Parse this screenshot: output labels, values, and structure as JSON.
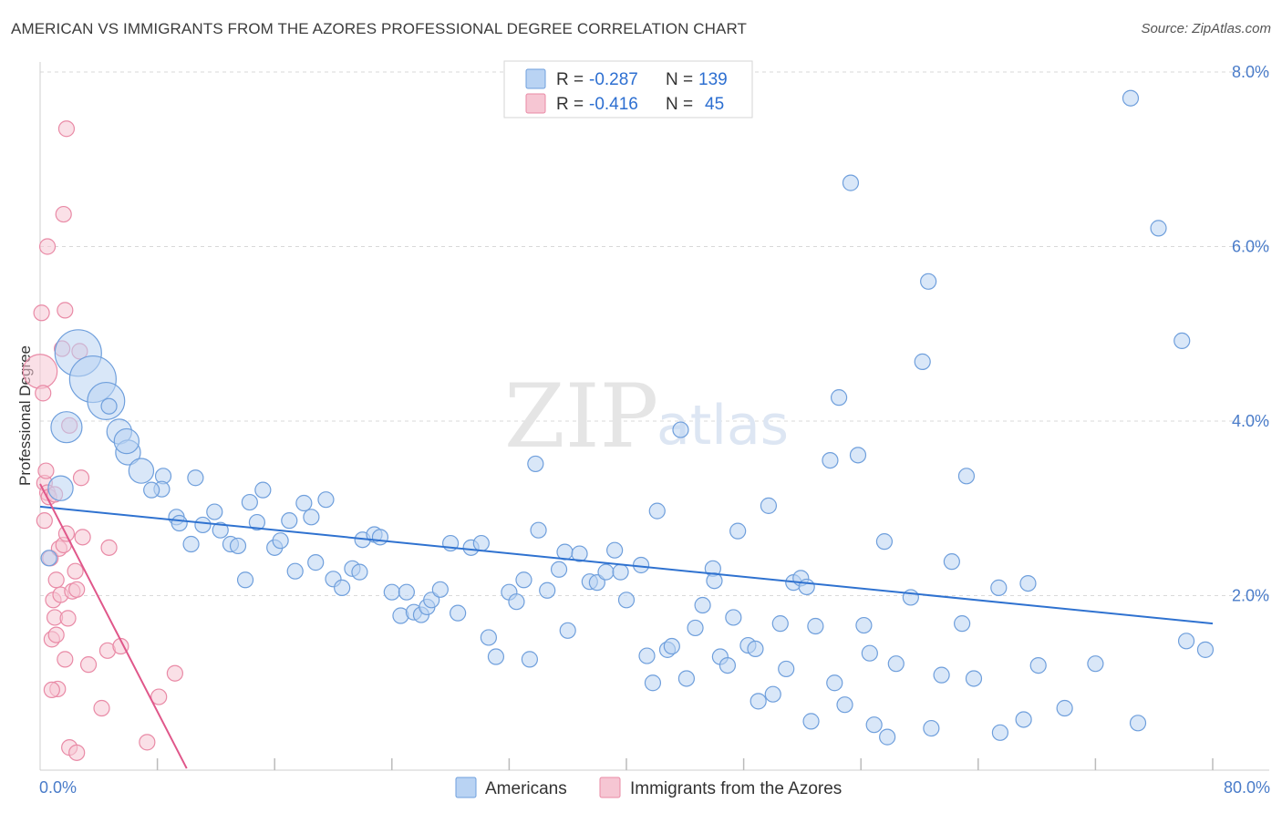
{
  "header": {
    "title": "AMERICAN VS IMMIGRANTS FROM THE AZORES PROFESSIONAL DEGREE CORRELATION CHART",
    "source": "Source: ZipAtlas.com"
  },
  "watermark": {
    "zip": "ZIP",
    "atlas": "atlas"
  },
  "colors": {
    "blue_fill": "#b9d3f3",
    "blue_stroke": "#6f9fdc",
    "blue_line": "#2f72d0",
    "pink_fill": "#f6c6d3",
    "pink_stroke": "#e98aa6",
    "pink_line": "#e0578a",
    "grid": "#d9d9d9",
    "axis_text": "#4a7cc9"
  },
  "legend_top": {
    "row1": {
      "r_label": "R =",
      "r_value": "-0.287",
      "n_label": "N =",
      "n_value": "139"
    },
    "row2": {
      "r_label": "R =",
      "r_value": "-0.416",
      "n_label": "N =",
      "n_value": "45"
    }
  },
  "legend_bottom": {
    "americans": "Americans",
    "azores": "Immigrants from the Azores"
  },
  "chart_data": {
    "type": "scatter",
    "title": "AMERICAN VS IMMIGRANTS FROM THE AZORES PROFESSIONAL DEGREE CORRELATION CHART",
    "xlabel": "",
    "ylabel": "Professional Degree",
    "xlim": [
      0,
      80
    ],
    "ylim": [
      0,
      8
    ],
    "x_tick_labels": [
      "0.0%",
      "80.0%"
    ],
    "y_ticks": [
      2,
      4,
      6,
      8
    ],
    "y_tick_labels": [
      "2.0%",
      "4.0%",
      "6.0%",
      "8.0%"
    ],
    "grid": "horizontal dashed",
    "legend_position": "top-center and bottom",
    "series": [
      {
        "name": "Americans",
        "r": -0.287,
        "n": 139,
        "trend": [
          [
            0,
            3.02
          ],
          [
            80,
            1.68
          ]
        ],
        "points": [
          [
            2.6,
            4.78,
            3
          ],
          [
            3.6,
            4.48,
            3
          ],
          [
            4.5,
            4.23,
            2.4
          ],
          [
            1.8,
            3.93,
            2
          ],
          [
            5.4,
            3.88,
            1.6
          ],
          [
            6.0,
            3.64,
            1.6
          ],
          [
            6.9,
            3.43,
            1.6
          ],
          [
            5.9,
            3.77,
            1.6
          ],
          [
            1.4,
            3.23,
            1.6
          ],
          [
            0.6,
            2.43,
            1
          ],
          [
            4.7,
            4.17,
            1
          ],
          [
            8.4,
            3.37,
            1
          ],
          [
            8.3,
            3.22,
            1
          ],
          [
            7.6,
            3.21,
            1
          ],
          [
            10.6,
            3.35,
            1
          ],
          [
            9.3,
            2.9,
            1
          ],
          [
            9.5,
            2.83,
            1
          ],
          [
            11.9,
            2.96,
            1
          ],
          [
            10.3,
            2.59,
            1
          ],
          [
            12.3,
            2.75,
            1
          ],
          [
            11.1,
            2.81,
            1
          ],
          [
            13.0,
            2.59,
            1
          ],
          [
            13.5,
            2.57,
            1
          ],
          [
            14.3,
            3.07,
            1
          ],
          [
            15.2,
            3.21,
            1
          ],
          [
            14.8,
            2.84,
            1
          ],
          [
            16.0,
            2.55,
            1
          ],
          [
            16.4,
            2.63,
            1
          ],
          [
            17.0,
            2.86,
            1
          ],
          [
            17.4,
            2.28,
            1
          ],
          [
            18.0,
            3.06,
            1
          ],
          [
            18.5,
            2.9,
            1
          ],
          [
            19.5,
            3.1,
            1
          ],
          [
            18.8,
            2.38,
            1
          ],
          [
            20.0,
            2.19,
            1
          ],
          [
            20.6,
            2.09,
            1
          ],
          [
            21.3,
            2.31,
            1
          ],
          [
            21.8,
            2.27,
            1
          ],
          [
            22.0,
            2.64,
            1
          ],
          [
            22.8,
            2.7,
            1
          ],
          [
            23.2,
            2.67,
            1
          ],
          [
            14.0,
            2.18,
            1
          ],
          [
            24.0,
            2.04,
            1
          ],
          [
            24.6,
            1.77,
            1
          ],
          [
            25.0,
            2.04,
            1
          ],
          [
            25.5,
            1.81,
            1
          ],
          [
            26.0,
            1.78,
            1
          ],
          [
            26.4,
            1.87,
            1
          ],
          [
            26.7,
            1.95,
            1
          ],
          [
            27.3,
            2.07,
            1
          ],
          [
            28.5,
            1.8,
            1
          ],
          [
            28.0,
            2.6,
            1
          ],
          [
            29.4,
            2.55,
            1
          ],
          [
            30.1,
            2.6,
            1
          ],
          [
            30.6,
            1.52,
            1
          ],
          [
            31.1,
            1.3,
            1
          ],
          [
            32.0,
            2.04,
            1
          ],
          [
            32.5,
            1.93,
            1
          ],
          [
            33.0,
            2.18,
            1
          ],
          [
            33.4,
            1.27,
            1
          ],
          [
            34.0,
            2.75,
            1
          ],
          [
            33.8,
            3.51,
            1
          ],
          [
            34.6,
            2.06,
            1
          ],
          [
            35.4,
            2.3,
            1
          ],
          [
            35.8,
            2.5,
            1
          ],
          [
            36.0,
            1.6,
            1
          ],
          [
            36.8,
            2.48,
            1
          ],
          [
            37.5,
            2.16,
            1
          ],
          [
            38.0,
            2.15,
            1
          ],
          [
            38.6,
            2.27,
            1
          ],
          [
            39.2,
            2.52,
            1
          ],
          [
            39.6,
            2.27,
            1
          ],
          [
            40.0,
            1.95,
            1
          ],
          [
            41.0,
            2.35,
            1
          ],
          [
            41.4,
            1.31,
            1
          ],
          [
            41.8,
            1.0,
            1
          ],
          [
            42.1,
            2.97,
            1
          ],
          [
            42.8,
            1.38,
            1
          ],
          [
            43.1,
            1.42,
            1
          ],
          [
            43.7,
            3.9,
            1
          ],
          [
            44.1,
            1.05,
            1
          ],
          [
            44.7,
            1.63,
            1
          ],
          [
            45.2,
            1.89,
            1
          ],
          [
            45.9,
            2.31,
            1
          ],
          [
            46.0,
            2.17,
            1
          ],
          [
            46.4,
            1.3,
            1
          ],
          [
            46.9,
            1.2,
            1
          ],
          [
            47.3,
            1.75,
            1
          ],
          [
            47.6,
            2.74,
            1
          ],
          [
            48.3,
            1.43,
            1
          ],
          [
            48.8,
            1.39,
            1
          ],
          [
            49.0,
            0.79,
            1
          ],
          [
            49.7,
            3.03,
            1
          ],
          [
            50.0,
            0.87,
            1
          ],
          [
            50.5,
            1.68,
            1
          ],
          [
            50.9,
            1.16,
            1
          ],
          [
            51.4,
            2.15,
            1
          ],
          [
            51.9,
            2.2,
            1
          ],
          [
            52.3,
            2.1,
            1
          ],
          [
            52.6,
            0.56,
            1
          ],
          [
            52.9,
            1.65,
            1
          ],
          [
            53.9,
            3.55,
            1
          ],
          [
            54.2,
            1.0,
            1
          ],
          [
            54.5,
            4.27,
            1
          ],
          [
            54.9,
            0.75,
            1
          ],
          [
            55.3,
            6.73,
            1
          ],
          [
            55.8,
            3.61,
            1
          ],
          [
            56.2,
            1.66,
            1
          ],
          [
            56.6,
            1.34,
            1
          ],
          [
            56.9,
            0.52,
            1
          ],
          [
            57.8,
            0.38,
            1
          ],
          [
            57.6,
            2.62,
            1
          ],
          [
            58.4,
            1.22,
            1
          ],
          [
            59.4,
            1.98,
            1
          ],
          [
            60.2,
            4.68,
            1
          ],
          [
            60.6,
            5.6,
            1
          ],
          [
            60.8,
            0.48,
            1
          ],
          [
            61.5,
            1.09,
            1
          ],
          [
            62.2,
            2.39,
            1
          ],
          [
            62.9,
            1.68,
            1
          ],
          [
            63.2,
            3.37,
            1
          ],
          [
            63.7,
            1.05,
            1
          ],
          [
            65.4,
            2.09,
            1
          ],
          [
            65.5,
            0.43,
            1
          ],
          [
            67.1,
            0.58,
            1
          ],
          [
            67.4,
            2.14,
            1
          ],
          [
            68.1,
            1.2,
            1
          ],
          [
            69.9,
            0.71,
            1
          ],
          [
            72.0,
            1.22,
            1
          ],
          [
            74.4,
            7.7,
            1
          ],
          [
            74.9,
            0.54,
            1
          ],
          [
            76.3,
            6.21,
            1
          ],
          [
            77.9,
            4.92,
            1
          ],
          [
            78.2,
            1.48,
            1
          ],
          [
            79.5,
            1.38,
            1
          ]
        ]
      },
      {
        "name": "Immigrants from the Azores",
        "r": -0.416,
        "n": 45,
        "trend": [
          [
            0,
            3.28
          ],
          [
            10,
            0.02
          ]
        ],
        "points": [
          [
            0.0,
            4.57,
            2.2
          ],
          [
            0.2,
            4.32,
            1
          ],
          [
            0.1,
            5.24,
            1
          ],
          [
            0.3,
            3.29,
            1
          ],
          [
            0.4,
            3.43,
            1
          ],
          [
            0.5,
            3.18,
            1
          ],
          [
            0.3,
            2.86,
            1
          ],
          [
            0.6,
            3.13,
            1
          ],
          [
            0.7,
            2.43,
            1
          ],
          [
            0.5,
            6.0,
            1
          ],
          [
            1.0,
            3.16,
            1
          ],
          [
            1.1,
            2.18,
            1
          ],
          [
            0.9,
            1.95,
            1
          ],
          [
            0.8,
            1.5,
            1
          ],
          [
            1.0,
            1.75,
            1
          ],
          [
            1.1,
            1.55,
            1
          ],
          [
            1.3,
            2.54,
            1
          ],
          [
            1.4,
            2.01,
            1
          ],
          [
            1.5,
            4.83,
            1
          ],
          [
            1.6,
            2.58,
            1
          ],
          [
            1.7,
            1.27,
            1
          ],
          [
            1.8,
            2.71,
            1
          ],
          [
            1.9,
            1.74,
            1
          ],
          [
            1.7,
            5.27,
            1
          ],
          [
            1.6,
            6.37,
            1
          ],
          [
            1.8,
            7.35,
            1
          ],
          [
            2.0,
            3.95,
            1
          ],
          [
            2.2,
            2.05,
            1
          ],
          [
            2.4,
            2.28,
            1
          ],
          [
            2.5,
            2.07,
            1
          ],
          [
            2.8,
            3.35,
            1
          ],
          [
            2.9,
            2.67,
            1
          ],
          [
            2.0,
            0.26,
            1
          ],
          [
            2.5,
            0.2,
            1
          ],
          [
            3.3,
            1.21,
            1
          ],
          [
            4.2,
            0.71,
            1
          ],
          [
            4.6,
            1.37,
            1
          ],
          [
            4.7,
            2.55,
            1
          ],
          [
            5.5,
            1.42,
            1
          ],
          [
            7.3,
            0.32,
            1
          ],
          [
            8.1,
            0.84,
            1
          ],
          [
            9.2,
            1.11,
            1
          ],
          [
            1.2,
            0.93,
            1
          ],
          [
            0.8,
            0.92,
            1
          ],
          [
            2.7,
            4.8,
            1
          ]
        ]
      }
    ]
  }
}
